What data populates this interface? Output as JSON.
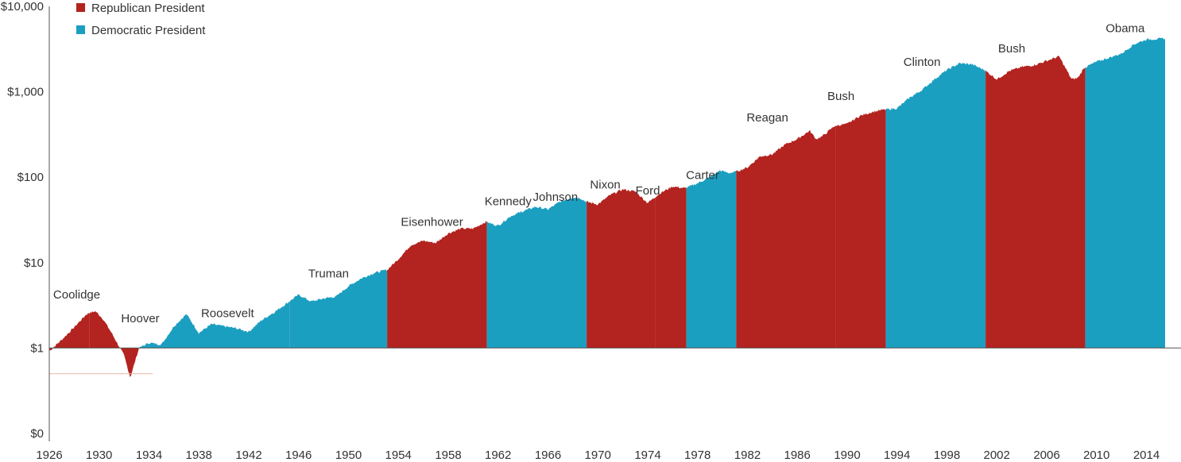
{
  "chart_data": {
    "type": "area",
    "title": "",
    "xlabel": "",
    "ylabel": "",
    "y_scale": "log",
    "ylim": [
      0.1,
      10000
    ],
    "xlim": [
      1926,
      2015.5
    ],
    "y_ticks": [
      {
        "value": 0.1,
        "label": "$0"
      },
      {
        "value": 1,
        "label": "$1"
      },
      {
        "value": 10,
        "label": "$10"
      },
      {
        "value": 100,
        "label": "$100"
      },
      {
        "value": 1000,
        "label": "$1,000"
      },
      {
        "value": 10000,
        "label": "$10,000"
      }
    ],
    "x_ticks": [
      "1926",
      "1930",
      "1934",
      "1938",
      "1942",
      "1946",
      "1950",
      "1954",
      "1958",
      "1962",
      "1966",
      "1970",
      "1974",
      "1978",
      "1982",
      "1986",
      "1990",
      "1994",
      "1998",
      "2002",
      "2006",
      "2010",
      "2014"
    ],
    "grid": false,
    "legend_position": "top-left",
    "legend": [
      {
        "label": "Republican President",
        "party": "R"
      },
      {
        "label": "Democratic President",
        "party": "D"
      }
    ],
    "colors": {
      "R": "#b3231f",
      "D": "#1b9fc1"
    },
    "series": [
      {
        "x": 1926.0,
        "y": 0.92
      },
      {
        "x": 1927.0,
        "y": 1.25
      },
      {
        "x": 1928.0,
        "y": 1.75
      },
      {
        "x": 1929.0,
        "y": 2.5
      },
      {
        "x": 1929.7,
        "y": 2.7
      },
      {
        "x": 1930.3,
        "y": 2.2
      },
      {
        "x": 1931.0,
        "y": 1.5
      },
      {
        "x": 1932.0,
        "y": 0.82
      },
      {
        "x": 1932.5,
        "y": 0.45
      },
      {
        "x": 1933.0,
        "y": 0.8
      },
      {
        "x": 1933.2,
        "y": 1.0
      },
      {
        "x": 1934.0,
        "y": 1.15
      },
      {
        "x": 1935.0,
        "y": 1.1
      },
      {
        "x": 1936.0,
        "y": 1.8
      },
      {
        "x": 1937.0,
        "y": 2.5
      },
      {
        "x": 1938.0,
        "y": 1.5
      },
      {
        "x": 1939.0,
        "y": 1.9
      },
      {
        "x": 1940.0,
        "y": 1.8
      },
      {
        "x": 1941.0,
        "y": 1.7
      },
      {
        "x": 1942.0,
        "y": 1.55
      },
      {
        "x": 1943.0,
        "y": 2.1
      },
      {
        "x": 1944.0,
        "y": 2.6
      },
      {
        "x": 1945.0,
        "y": 3.3
      },
      {
        "x": 1946.0,
        "y": 4.2
      },
      {
        "x": 1947.0,
        "y": 3.5
      },
      {
        "x": 1948.0,
        "y": 3.8
      },
      {
        "x": 1949.0,
        "y": 4.0
      },
      {
        "x": 1950.0,
        "y": 5.3
      },
      {
        "x": 1951.0,
        "y": 6.5
      },
      {
        "x": 1952.0,
        "y": 7.5
      },
      {
        "x": 1953.0,
        "y": 8.2
      },
      {
        "x": 1953.1,
        "y": 8.2
      },
      {
        "x": 1954.0,
        "y": 11
      },
      {
        "x": 1955.0,
        "y": 16
      },
      {
        "x": 1956.0,
        "y": 18
      },
      {
        "x": 1957.0,
        "y": 17
      },
      {
        "x": 1958.0,
        "y": 22
      },
      {
        "x": 1959.0,
        "y": 25
      },
      {
        "x": 1960.0,
        "y": 25
      },
      {
        "x": 1961.0,
        "y": 30
      },
      {
        "x": 1962.0,
        "y": 27
      },
      {
        "x": 1963.0,
        "y": 35
      },
      {
        "x": 1964.0,
        "y": 40
      },
      {
        "x": 1965.0,
        "y": 45
      },
      {
        "x": 1966.0,
        "y": 42
      },
      {
        "x": 1967.0,
        "y": 52
      },
      {
        "x": 1968.0,
        "y": 58
      },
      {
        "x": 1968.6,
        "y": 57
      },
      {
        "x": 1969.0,
        "y": 52
      },
      {
        "x": 1970.0,
        "y": 48
      },
      {
        "x": 1971.0,
        "y": 62
      },
      {
        "x": 1972.0,
        "y": 72
      },
      {
        "x": 1973.0,
        "y": 68
      },
      {
        "x": 1974.0,
        "y": 50
      },
      {
        "x": 1975.0,
        "y": 65
      },
      {
        "x": 1976.0,
        "y": 78
      },
      {
        "x": 1977.0,
        "y": 74
      },
      {
        "x": 1978.0,
        "y": 85
      },
      {
        "x": 1979.0,
        "y": 100
      },
      {
        "x": 1979.8,
        "y": 120
      },
      {
        "x": 1980.5,
        "y": 112
      },
      {
        "x": 1981.0,
        "y": 115
      },
      {
        "x": 1982.0,
        "y": 130
      },
      {
        "x": 1983.0,
        "y": 175
      },
      {
        "x": 1984.0,
        "y": 185
      },
      {
        "x": 1985.0,
        "y": 240
      },
      {
        "x": 1986.0,
        "y": 280
      },
      {
        "x": 1987.0,
        "y": 350
      },
      {
        "x": 1987.5,
        "y": 280
      },
      {
        "x": 1988.0,
        "y": 300
      },
      {
        "x": 1989.0,
        "y": 400
      },
      {
        "x": 1990.0,
        "y": 420
      },
      {
        "x": 1991.0,
        "y": 520
      },
      {
        "x": 1992.0,
        "y": 580
      },
      {
        "x": 1993.0,
        "y": 620
      },
      {
        "x": 1994.0,
        "y": 640
      },
      {
        "x": 1995.0,
        "y": 850
      },
      {
        "x": 1996.0,
        "y": 1050
      },
      {
        "x": 1997.0,
        "y": 1400
      },
      {
        "x": 1998.0,
        "y": 1800
      },
      {
        "x": 1999.0,
        "y": 2150
      },
      {
        "x": 2000.0,
        "y": 2100
      },
      {
        "x": 2001.0,
        "y": 1800
      },
      {
        "x": 2002.0,
        "y": 1400
      },
      {
        "x": 2003.0,
        "y": 1750
      },
      {
        "x": 2004.0,
        "y": 1950
      },
      {
        "x": 2005.0,
        "y": 2050
      },
      {
        "x": 2006.0,
        "y": 2300
      },
      {
        "x": 2007.0,
        "y": 2600
      },
      {
        "x": 2008.0,
        "y": 1400
      },
      {
        "x": 2008.5,
        "y": 1450
      },
      {
        "x": 2009.0,
        "y": 1900
      },
      {
        "x": 2010.0,
        "y": 2250
      },
      {
        "x": 2011.0,
        "y": 2500
      },
      {
        "x": 2012.0,
        "y": 2800
      },
      {
        "x": 2013.0,
        "y": 3600
      },
      {
        "x": 2014.0,
        "y": 4100
      },
      {
        "x": 2015.5,
        "y": 4200
      }
    ],
    "presidencies": [
      {
        "name": "Coolidge",
        "party": "R",
        "start": 1926.0,
        "end": 1929.2,
        "label_x": 1928.2,
        "label_y": 3.8
      },
      {
        "name": "Hoover",
        "party": "R",
        "start": 1929.2,
        "end": 1933.2,
        "label_x": 1933.3,
        "label_y": 2.0
      },
      {
        "name": "Roosevelt",
        "party": "D",
        "start": 1933.2,
        "end": 1945.3,
        "label_x": 1940.3,
        "label_y": 2.3
      },
      {
        "name": "Truman",
        "party": "D",
        "start": 1945.3,
        "end": 1953.1,
        "label_x": 1948.4,
        "label_y": 6.7
      },
      {
        "name": "Eisenhower",
        "party": "R",
        "start": 1953.1,
        "end": 1961.1,
        "label_x": 1956.7,
        "label_y": 27
      },
      {
        "name": "Kennedy",
        "party": "D",
        "start": 1961.1,
        "end": 1963.9,
        "label_x": 1962.8,
        "label_y": 47
      },
      {
        "name": "Johnson",
        "party": "D",
        "start": 1963.9,
        "end": 1969.1,
        "label_x": 1966.6,
        "label_y": 53
      },
      {
        "name": "Nixon",
        "party": "R",
        "start": 1969.1,
        "end": 1974.6,
        "label_x": 1970.6,
        "label_y": 74
      },
      {
        "name": "Ford",
        "party": "R",
        "start": 1974.6,
        "end": 1977.1,
        "label_x": 1974.0,
        "label_y": 63
      },
      {
        "name": "Carter",
        "party": "D",
        "start": 1977.1,
        "end": 1981.1,
        "label_x": 1978.4,
        "label_y": 95
      },
      {
        "name": "Reagan",
        "party": "R",
        "start": 1981.1,
        "end": 1989.1,
        "label_x": 1983.6,
        "label_y": 450
      },
      {
        "name": "Bush",
        "party": "R",
        "start": 1989.1,
        "end": 1993.1,
        "label_x": 1989.5,
        "label_y": 800
      },
      {
        "name": "Clinton",
        "party": "D",
        "start": 1993.1,
        "end": 2001.1,
        "label_x": 1996.0,
        "label_y": 2000
      },
      {
        "name": "Bush",
        "party": "R",
        "start": 2001.1,
        "end": 2009.1,
        "label_x": 2003.2,
        "label_y": 2900
      },
      {
        "name": "Obama",
        "party": "D",
        "start": 2009.1,
        "end": 2015.5,
        "label_x": 2012.3,
        "label_y": 5000
      }
    ]
  }
}
